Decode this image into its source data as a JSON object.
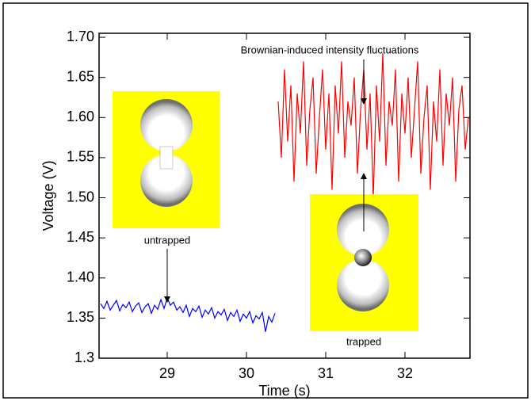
{
  "chart_data": {
    "type": "line",
    "x_label": "Time (s)",
    "y_label": "Voltage (V)",
    "x": [
      28.16,
      28.2,
      28.24,
      28.28,
      28.32,
      28.36,
      28.4,
      28.44,
      28.48,
      28.52,
      28.56,
      28.6,
      28.64,
      28.68,
      28.72,
      28.76,
      28.8,
      28.84,
      28.88,
      28.92,
      28.96,
      29,
      29.04,
      29.08,
      29.12,
      29.16,
      29.2,
      29.24,
      29.28,
      29.32,
      29.36,
      29.4,
      29.44,
      29.48,
      29.52,
      29.56,
      29.6,
      29.64,
      29.68,
      29.72,
      29.76,
      29.8,
      29.84,
      29.88,
      29.92,
      29.96,
      30,
      30.04,
      30.08,
      30.12,
      30.16,
      30.2,
      30.24,
      30.28,
      30.32,
      30.36,
      30.4,
      30.44,
      30.48,
      30.52,
      30.56,
      30.6,
      30.64,
      30.68,
      30.72,
      30.76,
      30.8,
      30.84,
      30.88,
      30.92,
      30.96,
      31,
      31.04,
      31.08,
      31.12,
      31.16,
      31.2,
      31.24,
      31.28,
      31.32,
      31.36,
      31.4,
      31.44,
      31.48,
      31.52,
      31.56,
      31.6,
      31.64,
      31.68,
      31.72,
      31.76,
      31.8,
      31.84,
      31.88,
      31.92,
      31.96,
      32,
      32.04,
      32.08,
      32.12,
      32.16,
      32.2,
      32.24,
      32.28,
      32.32,
      32.36,
      32.4,
      32.44,
      32.48,
      32.52,
      32.56,
      32.6,
      32.64,
      32.68,
      32.72,
      32.76,
      32.8
    ],
    "series": [
      {
        "color": "#0000ff",
        "values": [
          1.368,
          1.362,
          1.371,
          1.36,
          1.366,
          1.372,
          1.359,
          1.367,
          1.363,
          1.37,
          1.358,
          1.365,
          1.369,
          1.357,
          1.364,
          1.368,
          1.356,
          1.366,
          1.361,
          1.373,
          1.362,
          1.375,
          1.366,
          1.37,
          1.36,
          1.364,
          1.357,
          1.366,
          1.352,
          1.362,
          1.358,
          1.365,
          1.351,
          1.36,
          1.355,
          1.363,
          1.35,
          1.358,
          1.354,
          1.361,
          1.347,
          1.357,
          1.352,
          1.36,
          1.346,
          1.355,
          1.35,
          1.358,
          1.344,
          1.353,
          1.349,
          1.357,
          1.333,
          1.352,
          1.345,
          1.356,
          null,
          null,
          null,
          null,
          null,
          null,
          null,
          null,
          null,
          null,
          null,
          null,
          null,
          null,
          null,
          null,
          null,
          null,
          null,
          null,
          null,
          null,
          null,
          null,
          null,
          null,
          null,
          null,
          null,
          null,
          null,
          null,
          null,
          null,
          null,
          null,
          null,
          null,
          null,
          null,
          null,
          null,
          null,
          null,
          null,
          null,
          null,
          null,
          null,
          null,
          null,
          null,
          null,
          null,
          null,
          null,
          null,
          null,
          null,
          null,
          null
        ]
      },
      {
        "color": "#ff0000",
        "values": [
          null,
          null,
          null,
          null,
          null,
          null,
          null,
          null,
          null,
          null,
          null,
          null,
          null,
          null,
          null,
          null,
          null,
          null,
          null,
          null,
          null,
          null,
          null,
          null,
          null,
          null,
          null,
          null,
          null,
          null,
          null,
          null,
          null,
          null,
          null,
          null,
          null,
          null,
          null,
          null,
          null,
          null,
          null,
          null,
          null,
          null,
          null,
          null,
          null,
          null,
          null,
          null,
          null,
          null,
          null,
          null,
          1.62,
          1.55,
          1.66,
          1.57,
          1.64,
          1.52,
          1.63,
          1.58,
          1.67,
          1.54,
          1.61,
          1.65,
          1.53,
          1.6,
          1.66,
          1.56,
          1.63,
          1.51,
          1.64,
          1.58,
          1.67,
          1.55,
          1.62,
          1.59,
          1.65,
          1.53,
          1.61,
          1.66,
          1.56,
          1.63,
          1.5,
          1.64,
          1.57,
          1.68,
          1.54,
          1.62,
          1.59,
          1.66,
          1.52,
          1.63,
          1.58,
          1.65,
          1.55,
          1.61,
          1.67,
          1.53,
          1.6,
          1.64,
          1.51,
          1.62,
          1.57,
          1.66,
          1.54,
          1.63,
          1.59,
          1.65,
          1.52,
          1.61,
          1.64,
          1.56,
          1.6
        ]
      }
    ],
    "xlim": [
      28.14,
      32.82
    ],
    "ylim": [
      1.3,
      1.705
    ],
    "xticks": [
      29,
      30,
      31,
      32
    ],
    "yticks": [
      1.3,
      1.35,
      {
        "value": 1.4,
        "label": "1.40"
      },
      1.45,
      {
        "value": 1.5,
        "label": "1.50"
      },
      1.55,
      {
        "value": 1.6,
        "label": "1.60"
      },
      1.65,
      {
        "value": 1.7,
        "label": "1.70"
      }
    ],
    "annotations": [
      "Brownian-induced intensity fluctuations",
      "untrapped",
      "trapped"
    ]
  }
}
